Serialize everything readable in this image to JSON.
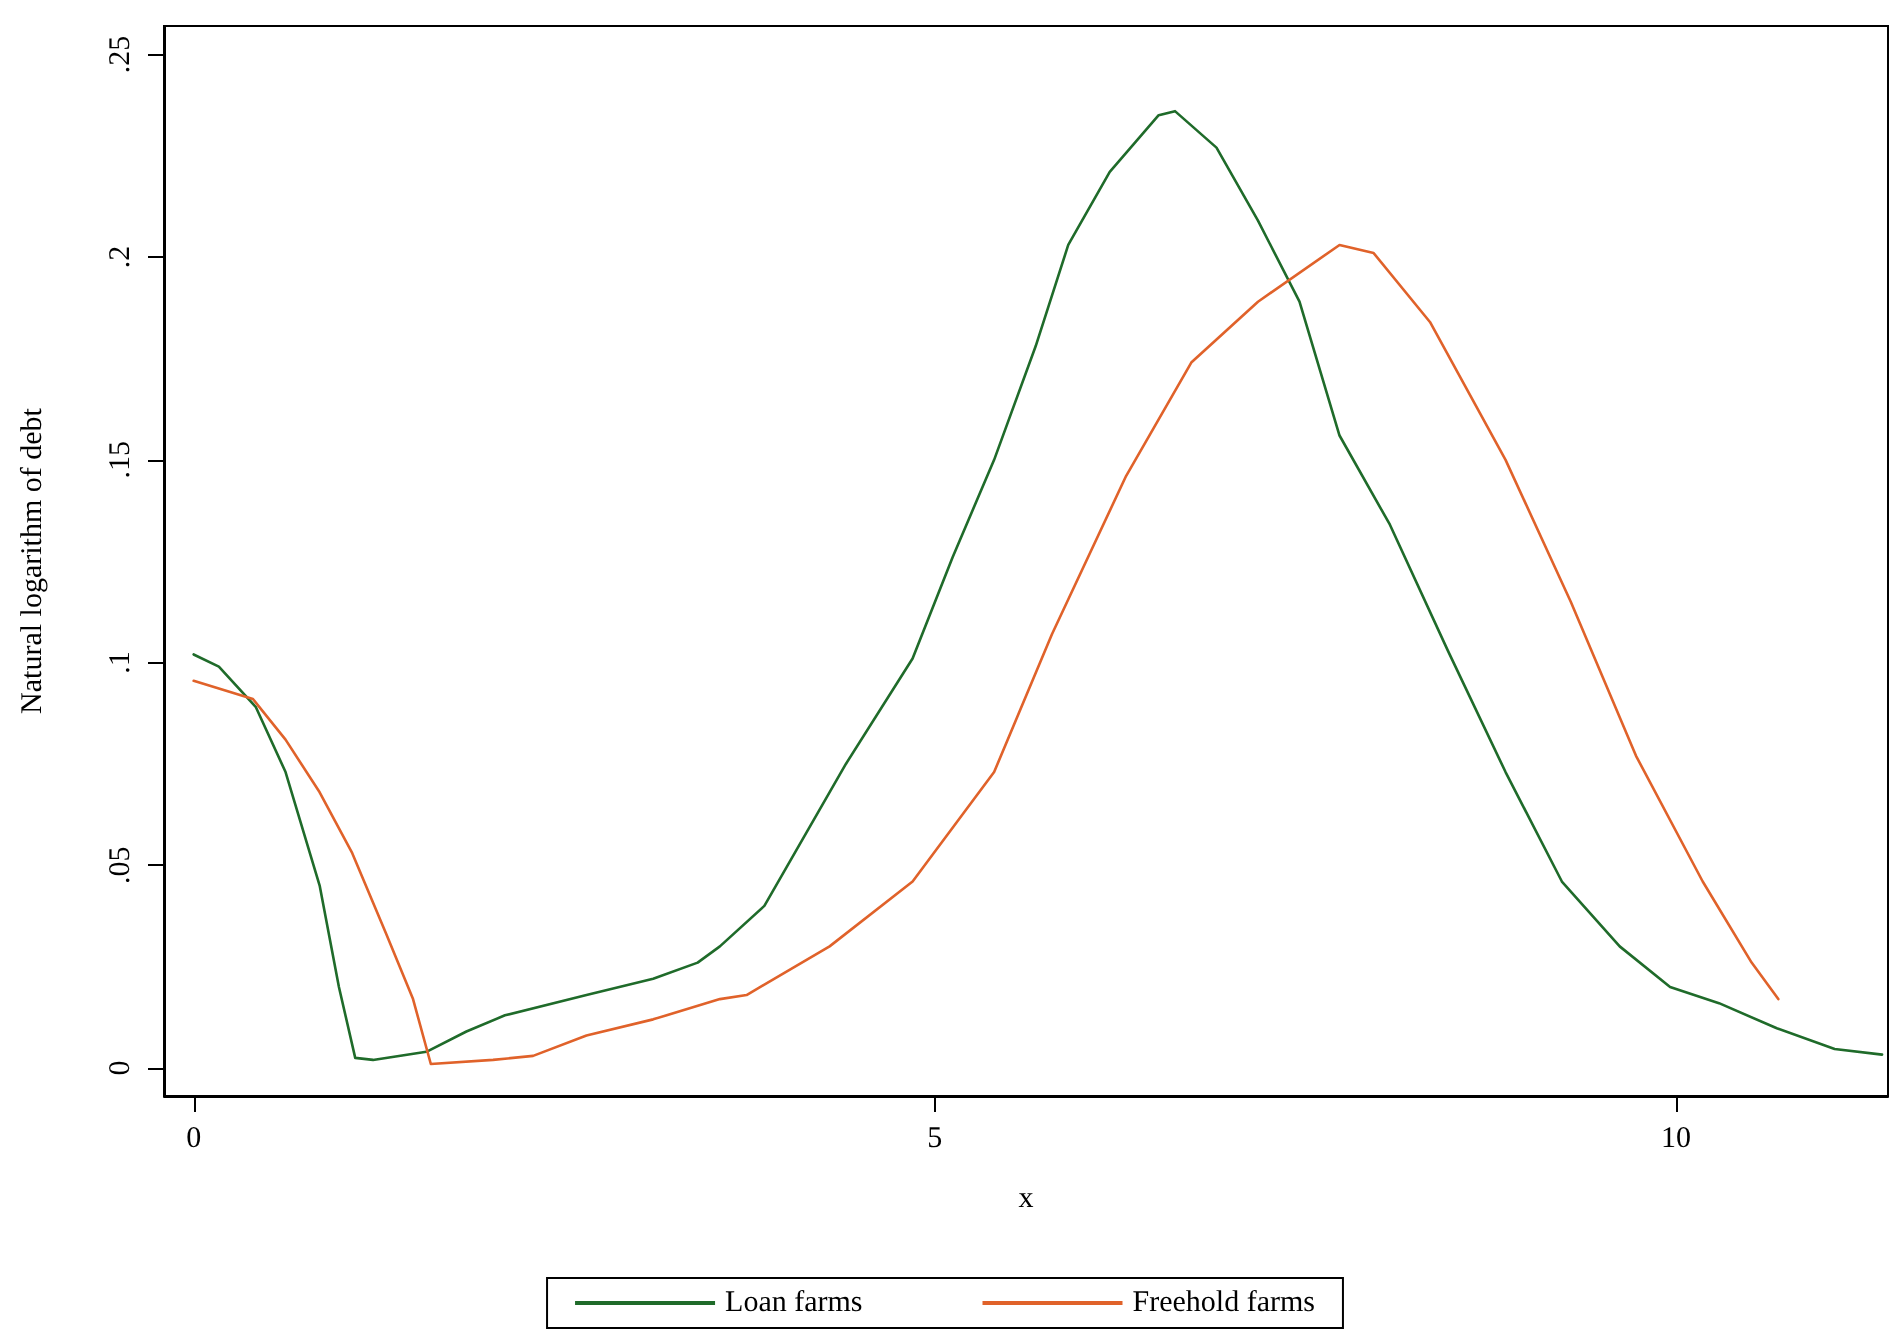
{
  "chart_data": {
    "type": "line",
    "xlabel": "x",
    "ylabel": "Natural logarithm of debt",
    "xlim": [
      -0.2,
      11.43
    ],
    "ylim": [
      -0.0069,
      0.257
    ],
    "xticks": [
      0,
      5,
      10
    ],
    "yticks": [
      0,
      {
        "value": 0.05,
        "label": ".05"
      },
      {
        "value": 0.1,
        "label": ".1"
      },
      {
        "value": 0.15,
        "label": ".15"
      },
      {
        "value": 0.2,
        "label": ".2"
      },
      {
        "value": 0.25,
        "label": ".25"
      }
    ],
    "legend": "bottom",
    "marker": "none",
    "series": [
      {
        "name": "Loan farms",
        "color": "#1f6b2a",
        "x": [
          0,
          0.17,
          0.42,
          0.62,
          0.85,
          0.98,
          1.09,
          1.21,
          1.57,
          1.84,
          2.1,
          2.65,
          3.1,
          3.4,
          3.55,
          3.85,
          4.4,
          4.85,
          5.12,
          5.4,
          5.68,
          5.9,
          6.18,
          6.51,
          6.62,
          6.9,
          7.18,
          7.46,
          7.73,
          8.07,
          8.46,
          8.85,
          9.23,
          9.62,
          9.96,
          10.29,
          10.68,
          11.07,
          11.39
        ],
        "values": [
          0.102,
          0.099,
          0.089,
          0.073,
          0.045,
          0.02,
          0.0025,
          0.002,
          0.004,
          0.009,
          0.013,
          0.018,
          0.022,
          0.026,
          0.03,
          0.04,
          0.075,
          0.101,
          0.126,
          0.15,
          0.178,
          0.203,
          0.221,
          0.235,
          0.236,
          0.227,
          0.209,
          0.189,
          0.156,
          0.134,
          0.103,
          0.073,
          0.046,
          0.03,
          0.02,
          0.016,
          0.0098,
          0.0047,
          0.0033
        ]
      },
      {
        "name": "Freehold farms",
        "color": "#e0622a",
        "x": [
          0,
          0.4,
          0.62,
          0.85,
          1.07,
          1.3,
          1.48,
          1.6,
          2.02,
          2.29,
          2.65,
          3.1,
          3.55,
          3.73,
          4.29,
          4.85,
          5.4,
          5.79,
          6.29,
          6.73,
          7.18,
          7.73,
          7.96,
          8.34,
          8.85,
          9.29,
          9.73,
          10.18,
          10.51,
          10.69
        ],
        "values": [
          0.0955,
          0.091,
          0.081,
          0.068,
          0.053,
          0.033,
          0.017,
          0.001,
          0.002,
          0.003,
          0.008,
          0.012,
          0.017,
          0.018,
          0.03,
          0.046,
          0.073,
          0.107,
          0.146,
          0.174,
          0.189,
          0.203,
          0.201,
          0.184,
          0.15,
          0.115,
          0.077,
          0.046,
          0.026,
          0.017
        ]
      }
    ]
  }
}
